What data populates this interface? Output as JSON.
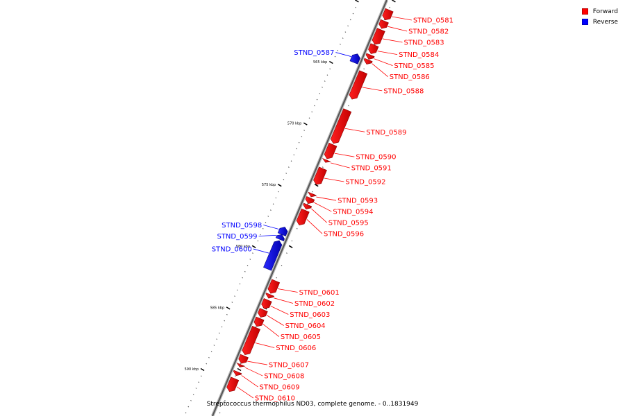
{
  "legend": {
    "forward_label": "Forward",
    "reverse_label": "Reverse",
    "forward_color": "#ff0000",
    "reverse_color": "#0000ff"
  },
  "caption": "Streptococcus thermophilus ND03, complete genome. - 0..1831949",
  "scale": {
    "ticks": [
      {
        "kbp": 565,
        "label": "565 kbp"
      },
      {
        "kbp": 570,
        "label": "570 kbp"
      },
      {
        "kbp": 575,
        "label": "575 kbp"
      },
      {
        "kbp": 580,
        "label": "580 kbp"
      },
      {
        "kbp": 585,
        "label": "585 kbp"
      },
      {
        "kbp": 590,
        "label": "590 kbp"
      }
    ]
  },
  "genes": [
    {
      "name": "STND_0581",
      "strand": "forward",
      "start_kbp": 560.55,
      "end_kbp": 561.35
    },
    {
      "name": "STND_0582",
      "strand": "forward",
      "start_kbp": 561.45,
      "end_kbp": 562.05
    },
    {
      "name": "STND_0583",
      "strand": "forward",
      "start_kbp": 562.15,
      "end_kbp": 563.35
    },
    {
      "name": "STND_0584",
      "strand": "forward",
      "start_kbp": 563.4,
      "end_kbp": 564.1
    },
    {
      "name": "STND_0585",
      "strand": "forward",
      "start_kbp": 564.2,
      "end_kbp": 564.55
    },
    {
      "name": "STND_0586",
      "strand": "forward",
      "start_kbp": 564.6,
      "end_kbp": 564.95
    },
    {
      "name": "STND_0587",
      "strand": "reverse",
      "start_kbp": 564.5,
      "end_kbp": 565.2
    },
    {
      "name": "STND_0588",
      "strand": "forward",
      "start_kbp": 565.6,
      "end_kbp": 567.8
    },
    {
      "name": "STND_0589",
      "strand": "forward",
      "start_kbp": 568.7,
      "end_kbp": 571.4
    },
    {
      "name": "STND_0590",
      "strand": "forward",
      "start_kbp": 571.5,
      "end_kbp": 572.65
    },
    {
      "name": "STND_0591",
      "strand": "forward",
      "start_kbp": 572.75,
      "end_kbp": 572.95
    },
    {
      "name": "STND_0592",
      "strand": "forward",
      "start_kbp": 573.45,
      "end_kbp": 574.75
    },
    {
      "name": "STND_0593",
      "strand": "forward",
      "start_kbp": 575.5,
      "end_kbp": 575.75
    },
    {
      "name": "STND_0594",
      "strand": "forward",
      "start_kbp": 575.85,
      "end_kbp": 576.3
    },
    {
      "name": "STND_0595",
      "strand": "forward",
      "start_kbp": 576.4,
      "end_kbp": 576.75
    },
    {
      "name": "STND_0596",
      "strand": "forward",
      "start_kbp": 576.85,
      "end_kbp": 578.05
    },
    {
      "name": "STND_0598",
      "strand": "reverse",
      "start_kbp": 578.6,
      "end_kbp": 579.2
    },
    {
      "name": "STND_0599",
      "strand": "reverse",
      "start_kbp": 579.2,
      "end_kbp": 579.6
    },
    {
      "name": "STND_0600",
      "strand": "reverse",
      "start_kbp": 579.7,
      "end_kbp": 582.0
    },
    {
      "name": "STND_0601",
      "strand": "forward",
      "start_kbp": 582.6,
      "end_kbp": 583.6
    },
    {
      "name": "STND_0602",
      "strand": "forward",
      "start_kbp": 583.7,
      "end_kbp": 584.0
    },
    {
      "name": "STND_0603",
      "strand": "forward",
      "start_kbp": 584.15,
      "end_kbp": 584.85
    },
    {
      "name": "STND_0604",
      "strand": "forward",
      "start_kbp": 584.95,
      "end_kbp": 585.55
    },
    {
      "name": "STND_0605",
      "strand": "forward",
      "start_kbp": 585.65,
      "end_kbp": 586.3
    },
    {
      "name": "STND_0606",
      "strand": "forward",
      "start_kbp": 586.4,
      "end_kbp": 588.6
    },
    {
      "name": "STND_0607",
      "strand": "forward",
      "start_kbp": 588.7,
      "end_kbp": 589.3
    },
    {
      "name": "STND_0608",
      "strand": "forward",
      "start_kbp": 589.4,
      "end_kbp": 589.6
    },
    {
      "name": "STND_0609",
      "strand": "forward",
      "start_kbp": 590.0,
      "end_kbp": 590.3
    },
    {
      "name": "STND_0610",
      "strand": "forward",
      "start_kbp": 590.55,
      "end_kbp": 591.6
    }
  ]
}
